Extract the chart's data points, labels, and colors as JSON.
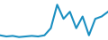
{
  "y": [
    4,
    3,
    3.5,
    2.5,
    3,
    3.5,
    3,
    4,
    10,
    30,
    18,
    24,
    10,
    20,
    4,
    18,
    20,
    24
  ],
  "line_color": "#1a8fc1",
  "linewidth": 1.5,
  "background_color": "#ffffff",
  "ylim_min": 0,
  "ylim_max": 34
}
